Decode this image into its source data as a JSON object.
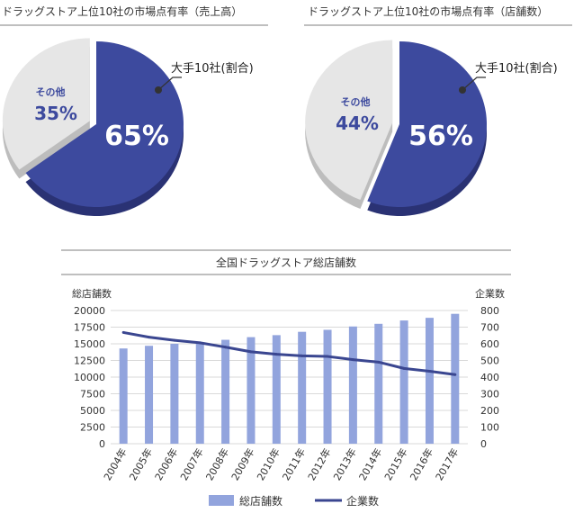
{
  "colors": {
    "major": "#3d4a9e",
    "major_side": "#2a3274",
    "others": "#e6e6e6",
    "others_side": "#bdbdbd",
    "bar": "#92a4dd",
    "line": "#3a4690",
    "grid": "#d9d9d9",
    "rule": "#7f7f7f"
  },
  "chart_data": [
    {
      "type": "pie",
      "title": "ドラッグストア上位10社の市場点有率（売上高）",
      "slices": [
        {
          "label": "大手10社(割合)",
          "value": 65,
          "value_label": "65%"
        },
        {
          "label": "その他",
          "value": 35,
          "value_label": "35%"
        }
      ]
    },
    {
      "type": "pie",
      "title": "ドラッグストア上位10社の市場点有率（店舗数）",
      "slices": [
        {
          "label": "大手10社(割合)",
          "value": 56,
          "value_label": "56%"
        },
        {
          "label": "その他",
          "value": 44,
          "value_label": "44%"
        }
      ]
    },
    {
      "type": "bar",
      "title": "全国ドラッグストア総店舗数",
      "categories": [
        "2004年",
        "2005年",
        "2006年",
        "2007年",
        "2008年",
        "2009年",
        "2010年",
        "2011年",
        "2012年",
        "2013年",
        "2014年",
        "2015年",
        "2016年",
        "2017年"
      ],
      "series": [
        {
          "name": "総店舗数",
          "type": "bar",
          "axis": "left",
          "values": [
            14300,
            14700,
            15000,
            15100,
            15600,
            16000,
            16300,
            16800,
            17100,
            17600,
            18000,
            18500,
            18900,
            19500
          ]
        },
        {
          "name": "企業数",
          "type": "line",
          "axis": "right",
          "values": [
            668,
            640,
            621,
            606,
            580,
            552,
            537,
            528,
            524,
            505,
            490,
            452,
            435,
            415
          ]
        }
      ],
      "ylabel": "総店舗数",
      "y2label": "企業数",
      "ylim": [
        0,
        20000
      ],
      "y2lim": [
        0,
        800
      ],
      "yticks": [
        "0",
        "2500",
        "5000",
        "7500",
        "10000",
        "12500",
        "15000",
        "17500",
        "20000"
      ],
      "y2ticks": [
        "0",
        "100",
        "200",
        "300",
        "400",
        "500",
        "600",
        "700",
        "800"
      ],
      "grid": true,
      "legend": "bottom"
    }
  ]
}
